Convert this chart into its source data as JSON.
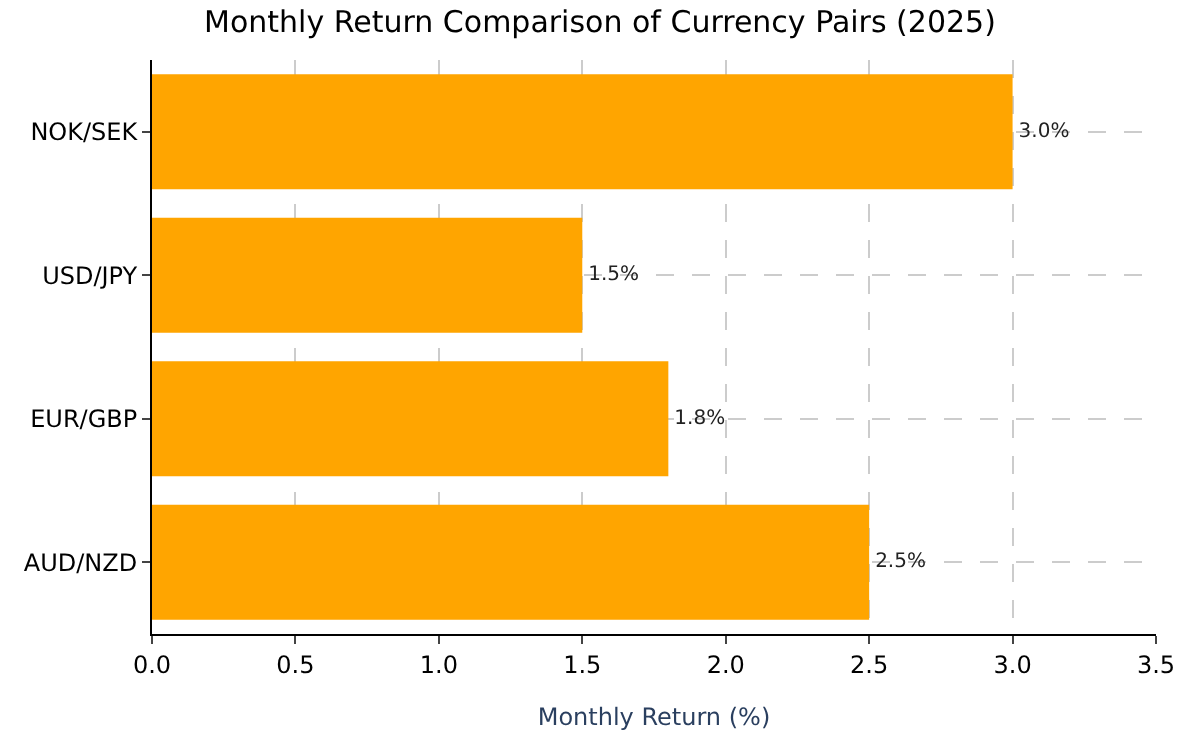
{
  "chart_data": {
    "type": "bar",
    "orientation": "horizontal",
    "title": "Monthly Return Comparison of Currency Pairs (2025)",
    "xlabel": "Monthly Return (%)",
    "categories": [
      "NOK/SEK",
      "USD/JPY",
      "EUR/GBP",
      "AUD/NZD"
    ],
    "values": [
      3.0,
      1.5,
      1.8,
      2.5
    ],
    "color": "#ffa500",
    "value_labels": [
      "3.0%",
      "1.5%",
      "1.8%",
      "2.5%"
    ],
    "xlim": [
      0,
      3.5
    ],
    "xticks": [
      {
        "value": 0,
        "label": "0.0"
      },
      {
        "value": 0.5,
        "label": "0.5"
      },
      {
        "value": 1,
        "label": "1.0"
      },
      {
        "value": 1.5,
        "label": "1.5"
      },
      {
        "value": 2,
        "label": "2.0"
      },
      {
        "value": 2.5,
        "label": "2.5"
      },
      {
        "value": 3,
        "label": "3.0"
      },
      {
        "value": 3.5,
        "label": "3.5"
      }
    ],
    "grid": true
  }
}
